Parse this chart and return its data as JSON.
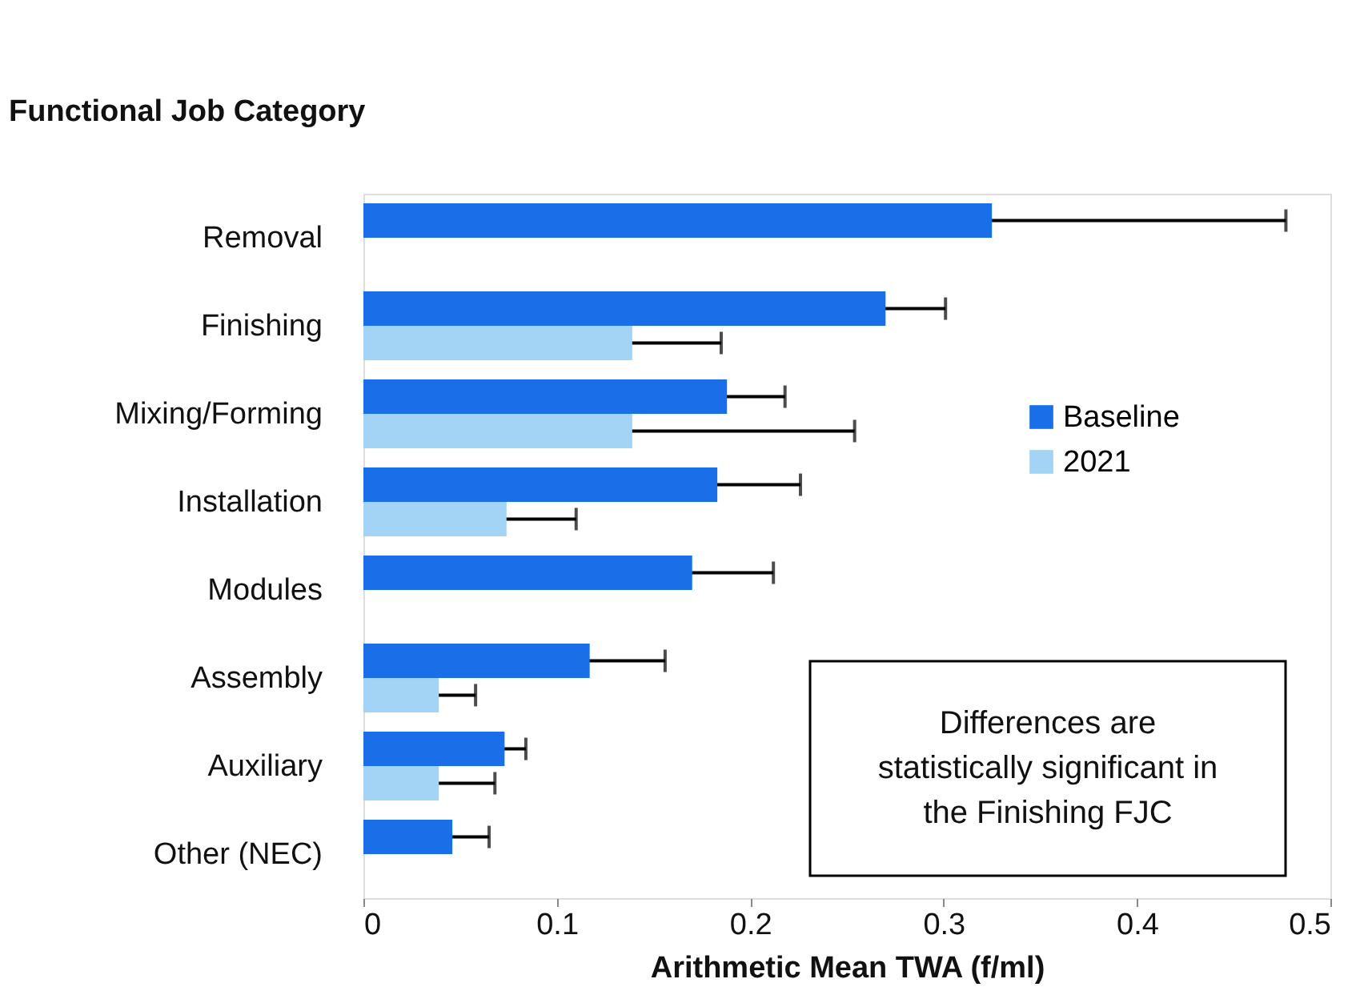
{
  "chart_data": {
    "type": "bar",
    "orientation": "horizontal",
    "ylabel": "Functional Job Category",
    "xlabel": "Arithmetic Mean TWA (f/ml)",
    "categories": [
      "Removal",
      "Finishing",
      "Mixing/Forming",
      "Installation",
      "Modules",
      "Assembly",
      "Auxiliary",
      "Other (NEC)"
    ],
    "series": [
      {
        "name": "Baseline",
        "color": "#1a6fe8",
        "values": [
          0.325,
          0.27,
          0.188,
          0.183,
          0.17,
          0.117,
          0.073,
          0.046
        ],
        "errors": [
          0.152,
          0.031,
          0.03,
          0.043,
          0.042,
          0.039,
          0.011,
          0.019
        ]
      },
      {
        "name": "2021",
        "color": "#a3d3f5",
        "values": [
          null,
          0.139,
          0.139,
          0.074,
          null,
          0.039,
          0.039,
          null
        ],
        "errors": [
          null,
          0.046,
          0.115,
          0.036,
          null,
          0.019,
          0.029,
          null
        ]
      }
    ],
    "xlim": [
      0,
      0.5
    ],
    "xticks": [
      0,
      0.1,
      0.2,
      0.3,
      0.4,
      0.5
    ],
    "grid": false,
    "legend": "right",
    "annotations": [
      "Differences are statistically significant in the Finishing FJC"
    ]
  }
}
